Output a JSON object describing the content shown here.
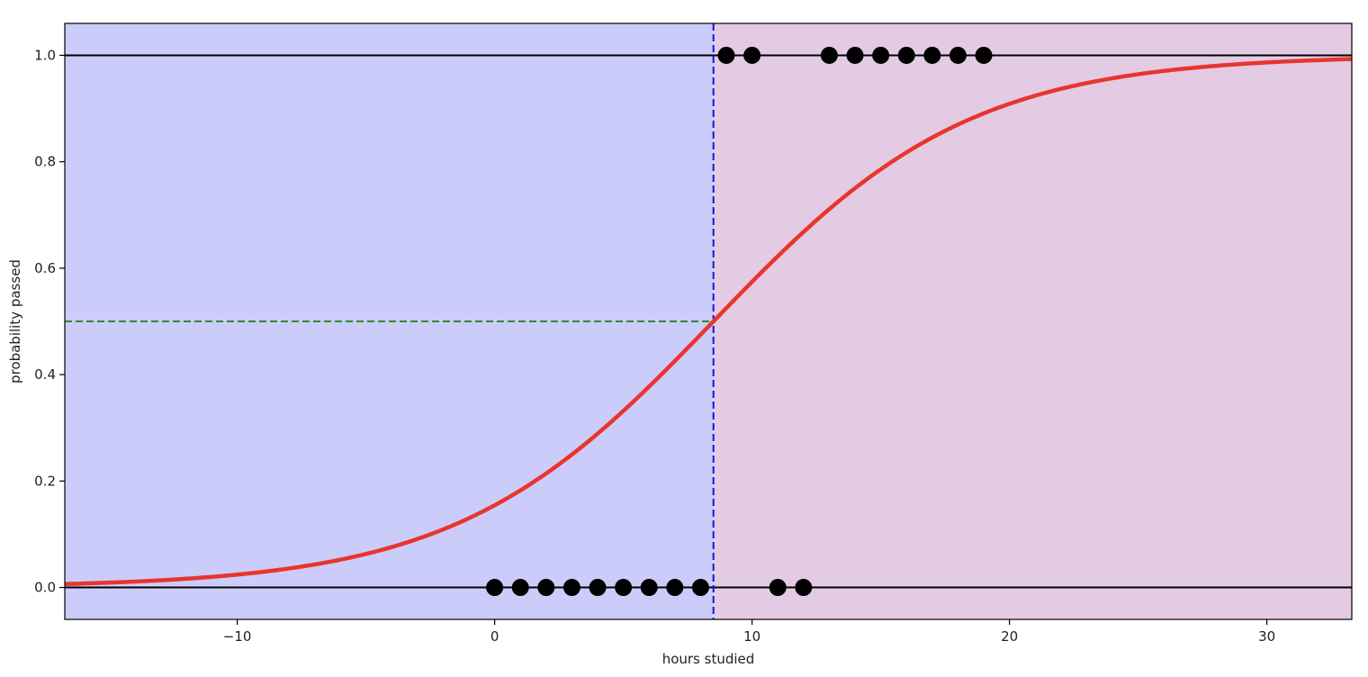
{
  "chart_data": {
    "type": "line",
    "title": "",
    "xlabel": "hours studied",
    "ylabel": "probability passed",
    "xlim": [
      -16.7,
      33.3
    ],
    "ylim": [
      -0.06,
      1.06
    ],
    "x_ticks": [
      -10,
      0,
      10,
      20,
      30
    ],
    "x_tick_labels": [
      "−10",
      "0",
      "10",
      "20",
      "30"
    ],
    "y_ticks": [
      0.0,
      0.2,
      0.4,
      0.6,
      0.8,
      1.0
    ],
    "y_tick_labels": [
      "0.0",
      "0.2",
      "0.4",
      "0.6",
      "0.8",
      "1.0"
    ],
    "grid": false,
    "legend": "none",
    "decision_boundary_x": 8.5,
    "threshold_probability": 0.5,
    "logistic_curve": {
      "midpoint": 8.5,
      "slope": 0.2
    },
    "regions": [
      {
        "x_range": [
          -16.7,
          8.5
        ],
        "color": "#ccccfa"
      },
      {
        "x_range": [
          8.5,
          33.3
        ],
        "color": "#e3cce3"
      }
    ],
    "points_failed": {
      "x": [
        0,
        1,
        2,
        3,
        4,
        5,
        6,
        7,
        8,
        11,
        12
      ],
      "y": [
        0,
        0,
        0,
        0,
        0,
        0,
        0,
        0,
        0,
        0,
        0
      ]
    },
    "points_passed": {
      "x": [
        9,
        10,
        13,
        14,
        15,
        16,
        17,
        18,
        19
      ],
      "y": [
        1,
        1,
        1,
        1,
        1,
        1,
        1,
        1,
        1
      ]
    },
    "colors": {
      "curve": "#e8352e",
      "boundary": "#1414e6",
      "threshold": "#2e8b2e",
      "points": "#000000",
      "reference_lines": "#000000"
    }
  }
}
